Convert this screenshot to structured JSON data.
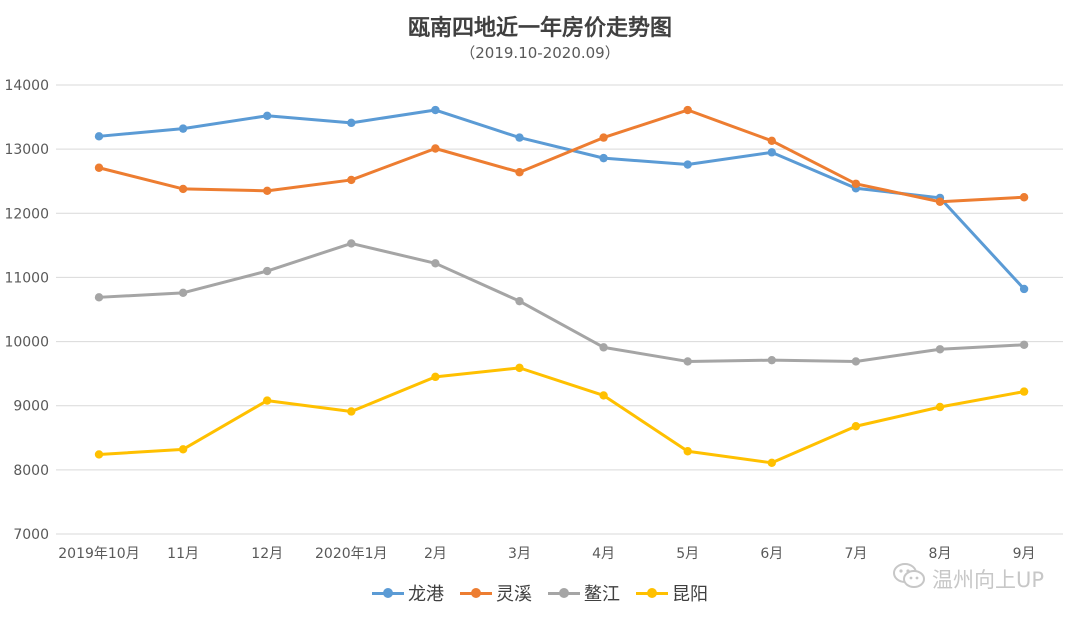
{
  "chart_data": {
    "type": "line",
    "title": "瓯南四地近一年房价走势图",
    "subtitle": "（2019.10-2020.09）",
    "categories": [
      "2019年10月",
      "11月",
      "12月",
      "2020年1月",
      "2月",
      "3月",
      "4月",
      "5月",
      "6月",
      "7月",
      "8月",
      "9月"
    ],
    "ylim": [
      7000,
      14000
    ],
    "yticks": [
      7000,
      8000,
      9000,
      10000,
      11000,
      12000,
      13000,
      14000
    ],
    "grid": true,
    "legend_position": "bottom",
    "series": [
      {
        "name": "龙港",
        "color": "#5b9bd5",
        "values": [
          13200,
          13320,
          13520,
          13410,
          13610,
          13180,
          12860,
          12760,
          12950,
          12390,
          12240,
          10820
        ]
      },
      {
        "name": "灵溪",
        "color": "#ed7d31",
        "values": [
          12710,
          12380,
          12350,
          12520,
          13010,
          12640,
          13180,
          13610,
          13130,
          12460,
          12180,
          12250
        ]
      },
      {
        "name": "鳌江",
        "color": "#a5a5a5",
        "values": [
          10690,
          10760,
          11100,
          11530,
          11220,
          10630,
          9910,
          9690,
          9710,
          9690,
          9880,
          9950
        ]
      },
      {
        "name": "昆阳",
        "color": "#ffc000",
        "values": [
          8240,
          8320,
          9080,
          8910,
          9450,
          9590,
          9160,
          8290,
          8110,
          8680,
          8980,
          9220
        ]
      }
    ]
  },
  "watermark": {
    "text": "温州向上UP",
    "icon": "wechat-icon",
    "color": "#c7c7c7"
  }
}
